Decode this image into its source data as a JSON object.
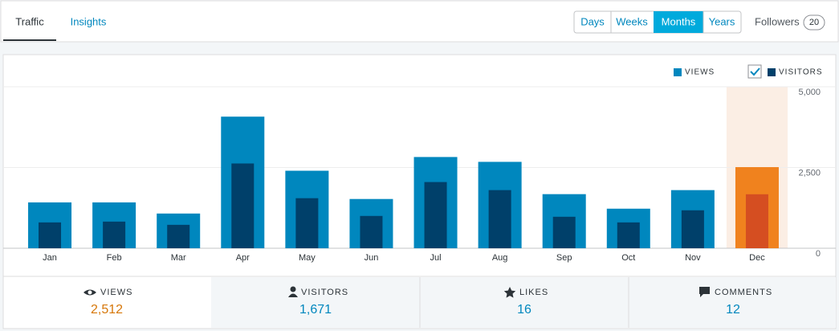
{
  "tabs": [
    "Traffic",
    "Insights"
  ],
  "periods": [
    "Days",
    "Weeks",
    "Months",
    "Years"
  ],
  "followers": {
    "label": "Followers",
    "count": "20"
  },
  "chart_data": {
    "type": "bar",
    "categories": [
      "Jan",
      "Feb",
      "Mar",
      "Apr",
      "May",
      "Jun",
      "Jul",
      "Aug",
      "Sep",
      "Oct",
      "Nov",
      "Dec"
    ],
    "series": [
      {
        "name": "VIEWS",
        "color": "#0087be",
        "highlight_color": "#f0821e",
        "values": [
          1420,
          1420,
          1075,
          4075,
          2400,
          1525,
          2825,
          2675,
          1675,
          1225,
          1800,
          2512
        ]
      },
      {
        "name": "VISITORS",
        "color": "#00406a",
        "highlight_color": "#d54e21",
        "values": [
          800,
          825,
          725,
          2625,
          1550,
          1000,
          2050,
          1800,
          975,
          800,
          1175,
          1671
        ]
      }
    ],
    "highlight": 11,
    "ylim": [
      0,
      5000
    ],
    "yticks": [
      0,
      {
        "value": 2500,
        "label": "2,500"
      },
      {
        "value": 5000,
        "label": "5,000"
      }
    ],
    "grid": true
  },
  "summary": [
    {
      "label": "VIEWS",
      "value": "2,512"
    },
    {
      "label": "VISITORS",
      "value": "1,671"
    },
    {
      "label": "LIKES",
      "value": "16"
    },
    {
      "label": "COMMENTS",
      "value": "12"
    }
  ]
}
